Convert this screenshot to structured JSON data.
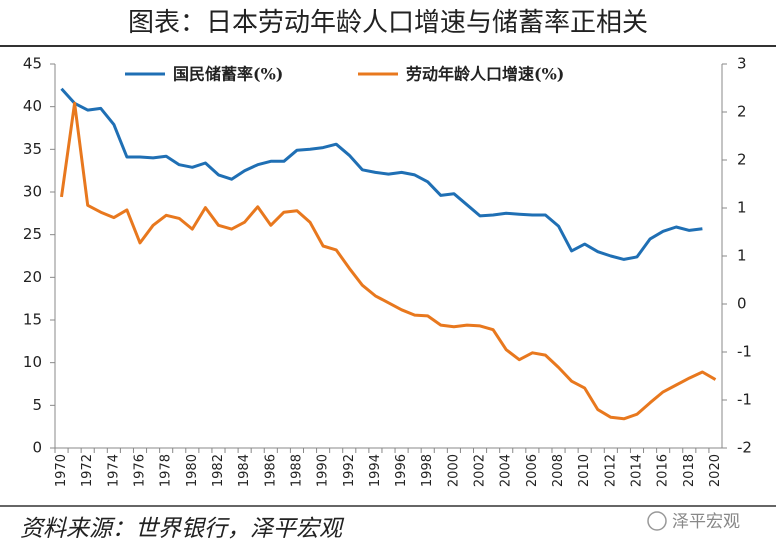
{
  "chart_data": {
    "type": "line",
    "title": "图表：日本劳动年龄人口增速与储蓄率正相关",
    "source": "资料来源：世界银行，泽平宏观",
    "watermark": "泽平宏观",
    "categories": [
      "1970",
      null,
      "1972",
      null,
      "1974",
      null,
      "1976",
      null,
      "1978",
      null,
      "1980",
      null,
      "1982",
      null,
      "1984",
      null,
      "1986",
      null,
      "1988",
      null,
      "1990",
      null,
      "1992",
      null,
      "1994",
      null,
      "1996",
      null,
      "1998",
      null,
      "2000",
      null,
      "2002",
      null,
      "2004",
      null,
      "2006",
      null,
      "2008",
      null,
      "2010",
      null,
      "2012",
      null,
      "2014",
      null,
      "2016",
      null,
      "2018",
      null,
      "2020"
    ],
    "series": [
      {
        "name": "国民储蓄率(%)",
        "color": "#1f6fb4",
        "axis": "y",
        "values": [
          42.1,
          40.4,
          39.6,
          39.8,
          37.9,
          34.1,
          34.1,
          34.0,
          34.2,
          33.2,
          32.9,
          33.4,
          32.0,
          31.5,
          32.5,
          33.2,
          33.6,
          33.6,
          34.9,
          35.0,
          35.2,
          35.6,
          34.3,
          32.6,
          32.3,
          32.1,
          32.3,
          32.0,
          31.2,
          29.6,
          29.8,
          28.5,
          27.2,
          27.3,
          27.5,
          27.4,
          27.3,
          27.3,
          26.0,
          23.1,
          23.9,
          23.0,
          22.5,
          22.1,
          22.4,
          24.5,
          25.4,
          25.9,
          25.5,
          25.7,
          null
        ]
      },
      {
        "name": "劳动年龄人口增速(%)",
        "color": "#e8781e",
        "axis": "y2",
        "values": [
          1.27,
          2.49,
          1.16,
          1.07,
          1.0,
          1.1,
          0.67,
          0.9,
          1.03,
          0.99,
          0.85,
          1.13,
          0.9,
          0.85,
          0.94,
          1.14,
          0.9,
          1.07,
          1.09,
          0.94,
          0.63,
          0.58,
          0.34,
          0.12,
          -0.02,
          -0.11,
          -0.2,
          -0.27,
          -0.28,
          -0.4,
          -0.42,
          -0.4,
          -0.41,
          -0.46,
          -0.72,
          -0.85,
          -0.76,
          -0.79,
          -0.95,
          -1.13,
          -1.22,
          -1.5,
          -1.6,
          -1.62,
          -1.56,
          -1.41,
          -1.27,
          -1.18,
          -1.09,
          -1.01,
          -1.11
        ]
      }
    ],
    "ylim": [
      0,
      45
    ],
    "yticks": [
      0,
      5,
      10,
      15,
      20,
      25,
      30,
      35,
      40,
      45
    ],
    "y2lim": [
      -2,
      3
    ],
    "y2ticks": [
      {
        "value": -2,
        "label": "-2"
      },
      {
        "value": -1.375,
        "label": "-1"
      },
      {
        "value": -0.75,
        "label": "-1"
      },
      {
        "value": -0.125,
        "label": "0"
      },
      {
        "value": 0.5,
        "label": "1"
      },
      {
        "value": 1.125,
        "label": "1"
      },
      {
        "value": 1.75,
        "label": "2"
      },
      {
        "value": 2.375,
        "label": "2"
      },
      {
        "value": 3,
        "label": "3"
      }
    ],
    "grid": false,
    "legend": "top"
  }
}
